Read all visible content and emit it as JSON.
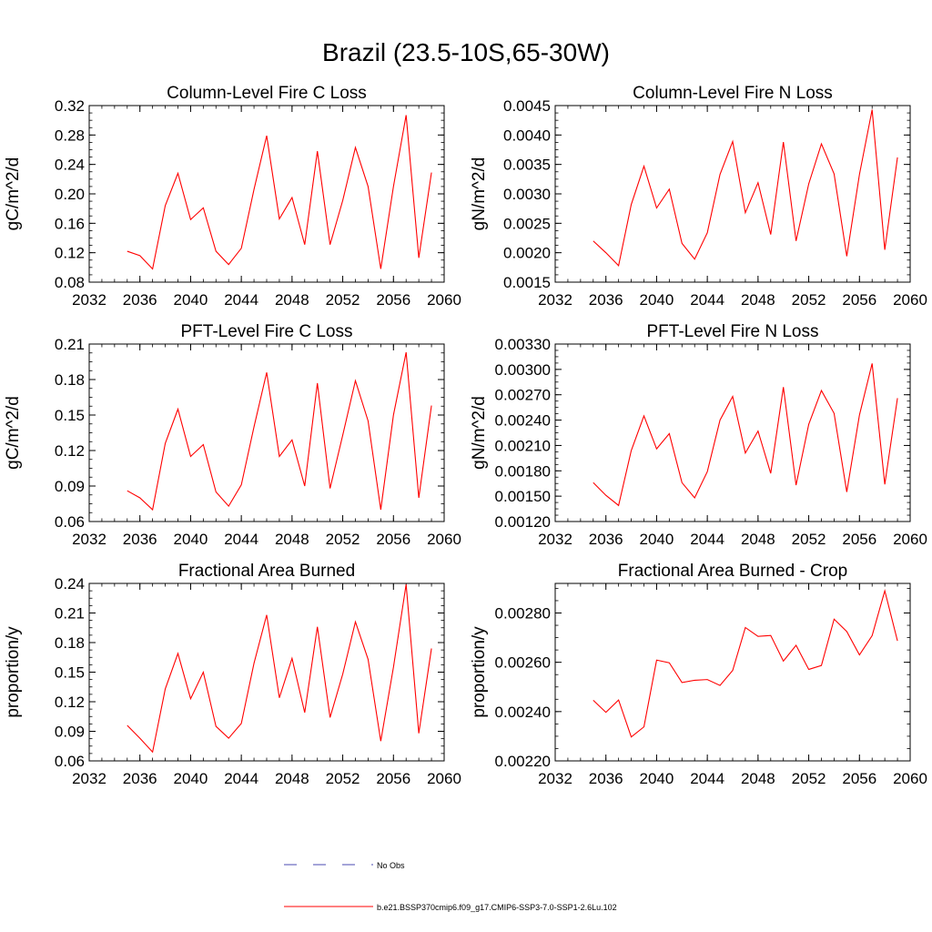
{
  "figure": {
    "title": "Brazil (23.5-10S,65-30W)"
  },
  "legend": {
    "items": [
      {
        "label": "No Obs",
        "color": "#4a4ab0",
        "style": "dashed"
      },
      {
        "label": "b.e21.BSSP370cmip6.f09_g17.CMIP6-SSP3-7.0-SSP1-2.6Lu.102",
        "color": "#ff0000",
        "style": "solid"
      }
    ]
  },
  "chart_data": [
    {
      "type": "line",
      "title": "Column-Level Fire C Loss",
      "ylabel": "gC/m^2/d",
      "xlim": [
        2032,
        2060
      ],
      "ylim": [
        0.08,
        0.32
      ],
      "xticks": [
        "2032",
        "2036",
        "2040",
        "2044",
        "2048",
        "2052",
        "2056",
        "2060"
      ],
      "yticks": [
        "0.08",
        "0.12",
        "0.16",
        "0.20",
        "0.24",
        "0.28",
        "0.32"
      ],
      "series": [
        {
          "color": "#ff0000",
          "x": [
            2035,
            2036,
            2037,
            2038,
            2039,
            2040,
            2041,
            2042,
            2043,
            2044,
            2045,
            2046,
            2047,
            2048,
            2049,
            2050,
            2051,
            2052,
            2053,
            2054,
            2055,
            2056,
            2057,
            2058,
            2059
          ],
          "y": [
            0.122,
            0.116,
            0.098,
            0.184,
            0.228,
            0.165,
            0.181,
            0.122,
            0.104,
            0.126,
            0.206,
            0.279,
            0.166,
            0.195,
            0.131,
            0.258,
            0.131,
            0.191,
            0.263,
            0.21,
            0.098,
            0.21,
            0.307,
            0.113,
            0.229
          ]
        }
      ]
    },
    {
      "type": "line",
      "title": "Column-Level Fire N Loss",
      "ylabel": "gN/m^2/d",
      "xlim": [
        2032,
        2060
      ],
      "ylim": [
        0.0015,
        0.0045
      ],
      "xticks": [
        "2032",
        "2036",
        "2040",
        "2044",
        "2048",
        "2052",
        "2056",
        "2060"
      ],
      "yticks": [
        "0.0015",
        "0.0020",
        "0.0025",
        "0.0030",
        "0.0035",
        "0.0040",
        "0.0045"
      ],
      "series": [
        {
          "color": "#ff0000",
          "x": [
            2035,
            2036,
            2037,
            2038,
            2039,
            2040,
            2041,
            2042,
            2043,
            2044,
            2045,
            2046,
            2047,
            2048,
            2049,
            2050,
            2051,
            2052,
            2053,
            2054,
            2055,
            2056,
            2057,
            2058,
            2059
          ],
          "y": [
            0.0022,
            0.002,
            0.00178,
            0.00282,
            0.00347,
            0.00276,
            0.00308,
            0.00216,
            0.00189,
            0.00234,
            0.00333,
            0.00389,
            0.00268,
            0.00319,
            0.00231,
            0.00388,
            0.0022,
            0.00317,
            0.00385,
            0.00334,
            0.00194,
            0.00333,
            0.00443,
            0.00205,
            0.00362
          ]
        }
      ]
    },
    {
      "type": "line",
      "title": "PFT-Level Fire C Loss",
      "ylabel": "gC/m^2/d",
      "xlim": [
        2032,
        2060
      ],
      "ylim": [
        0.06,
        0.21
      ],
      "xticks": [
        "2032",
        "2036",
        "2040",
        "2044",
        "2048",
        "2052",
        "2056",
        "2060"
      ],
      "yticks": [
        "0.06",
        "0.09",
        "0.12",
        "0.15",
        "0.18",
        "0.21"
      ],
      "series": [
        {
          "color": "#ff0000",
          "x": [
            2035,
            2036,
            2037,
            2038,
            2039,
            2040,
            2041,
            2042,
            2043,
            2044,
            2045,
            2046,
            2047,
            2048,
            2049,
            2050,
            2051,
            2052,
            2053,
            2054,
            2055,
            2056,
            2057,
            2058,
            2059
          ],
          "y": [
            0.086,
            0.08,
            0.07,
            0.126,
            0.155,
            0.115,
            0.125,
            0.085,
            0.073,
            0.091,
            0.14,
            0.186,
            0.115,
            0.129,
            0.09,
            0.177,
            0.088,
            0.133,
            0.179,
            0.145,
            0.07,
            0.15,
            0.203,
            0.08,
            0.158
          ]
        }
      ]
    },
    {
      "type": "line",
      "title": "PFT-Level Fire N Loss",
      "ylabel": "gN/m^2/d",
      "xlim": [
        2032,
        2060
      ],
      "ylim": [
        0.0012,
        0.0033
      ],
      "xticks": [
        "2032",
        "2036",
        "2040",
        "2044",
        "2048",
        "2052",
        "2056",
        "2060"
      ],
      "yticks": [
        "0.00120",
        "0.00150",
        "0.00180",
        "0.00210",
        "0.00240",
        "0.00270",
        "0.00300",
        "0.00330"
      ],
      "series": [
        {
          "color": "#ff0000",
          "x": [
            2035,
            2036,
            2037,
            2038,
            2039,
            2040,
            2041,
            2042,
            2043,
            2044,
            2045,
            2046,
            2047,
            2048,
            2049,
            2050,
            2051,
            2052,
            2053,
            2054,
            2055,
            2056,
            2057,
            2058,
            2059
          ],
          "y": [
            0.00166,
            0.00151,
            0.00139,
            0.00204,
            0.00245,
            0.00206,
            0.00224,
            0.00166,
            0.00148,
            0.00179,
            0.0024,
            0.00268,
            0.00201,
            0.00227,
            0.00177,
            0.00279,
            0.00163,
            0.00235,
            0.00275,
            0.00248,
            0.00155,
            0.00246,
            0.00307,
            0.00164,
            0.00266
          ]
        }
      ]
    },
    {
      "type": "line",
      "title": "Fractional Area Burned",
      "ylabel": "proportion/y",
      "xlim": [
        2032,
        2060
      ],
      "ylim": [
        0.06,
        0.24
      ],
      "xticks": [
        "2032",
        "2036",
        "2040",
        "2044",
        "2048",
        "2052",
        "2056",
        "2060"
      ],
      "yticks": [
        "0.06",
        "0.09",
        "0.12",
        "0.15",
        "0.18",
        "0.21",
        "0.24"
      ],
      "series": [
        {
          "color": "#ff0000",
          "x": [
            2035,
            2036,
            2037,
            2038,
            2039,
            2040,
            2041,
            2042,
            2043,
            2044,
            2045,
            2046,
            2047,
            2048,
            2049,
            2050,
            2051,
            2052,
            2053,
            2054,
            2055,
            2056,
            2057,
            2058,
            2059
          ],
          "y": [
            0.096,
            0.083,
            0.069,
            0.133,
            0.169,
            0.123,
            0.15,
            0.095,
            0.083,
            0.098,
            0.159,
            0.208,
            0.124,
            0.164,
            0.109,
            0.196,
            0.104,
            0.148,
            0.201,
            0.163,
            0.08,
            0.155,
            0.239,
            0.088,
            0.174
          ]
        }
      ]
    },
    {
      "type": "line",
      "title": "Fractional Area Burned - Crop",
      "ylabel": "proportion/y",
      "xlim": [
        2032,
        2060
      ],
      "ylim": [
        0.0022,
        0.00292
      ],
      "xticks": [
        "2032",
        "2036",
        "2040",
        "2044",
        "2048",
        "2052",
        "2056",
        "2060"
      ],
      "yticks": [
        "0.00220",
        "0.00240",
        "0.00260",
        "0.00280"
      ],
      "series": [
        {
          "color": "#ff0000",
          "x": [
            2035,
            2036,
            2037,
            2038,
            2039,
            2040,
            2041,
            2042,
            2043,
            2044,
            2045,
            2046,
            2047,
            2048,
            2049,
            2050,
            2051,
            2052,
            2053,
            2054,
            2055,
            2056,
            2057,
            2058,
            2059
          ],
          "y": [
            0.002446,
            0.002397,
            0.002447,
            0.002297,
            0.002338,
            0.002609,
            0.002598,
            0.002518,
            0.002527,
            0.00253,
            0.002506,
            0.002567,
            0.002741,
            0.002705,
            0.002709,
            0.002605,
            0.002669,
            0.002571,
            0.002587,
            0.002775,
            0.002725,
            0.00263,
            0.002708,
            0.00289,
            0.002687
          ]
        }
      ]
    }
  ]
}
